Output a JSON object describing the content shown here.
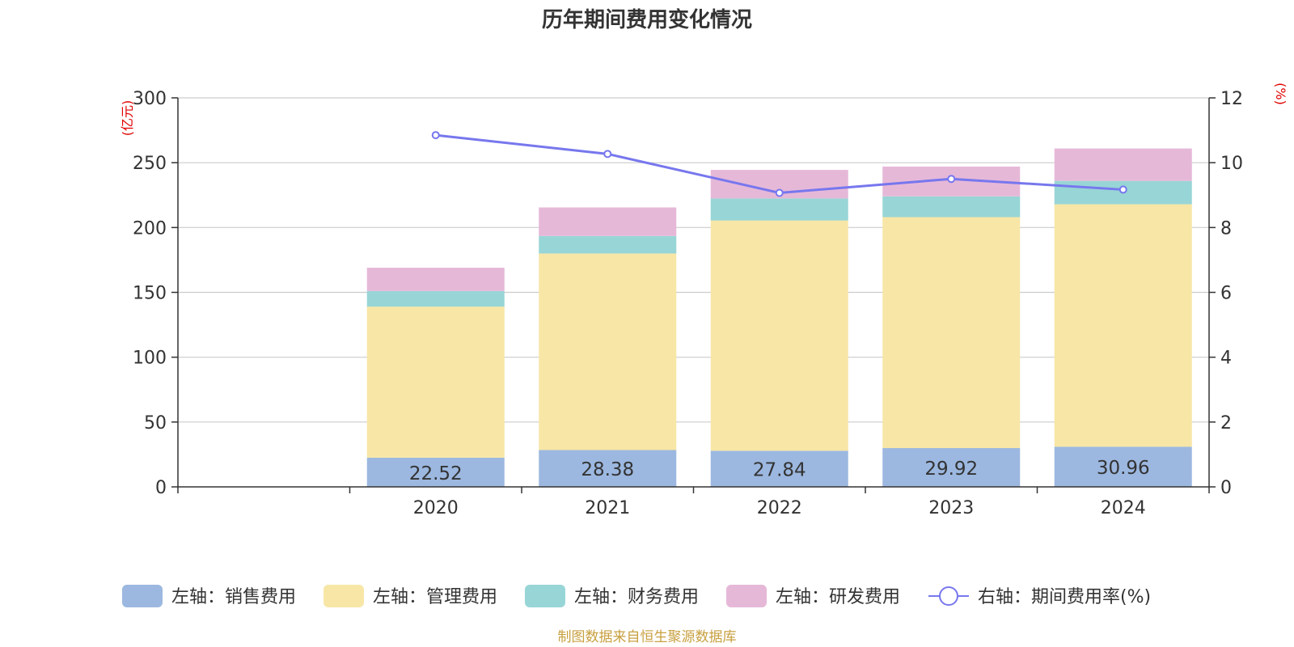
{
  "chart_data": {
    "type": "bar",
    "stacked": true,
    "title": "历年期间费用变化情况",
    "categories": [
      "",
      "2020",
      "2021",
      "2022",
      "2023",
      "2024"
    ],
    "left_axis": {
      "unit": "(亿元)",
      "ylim": [
        0,
        300
      ],
      "ticks": [
        0,
        50,
        100,
        150,
        200,
        250,
        300
      ]
    },
    "right_axis": {
      "unit": "(%)",
      "ylim": [
        0,
        12
      ],
      "ticks": [
        0,
        2,
        4,
        6,
        8,
        10,
        12
      ]
    },
    "series": [
      {
        "name": "左轴：销售费用",
        "axis": "left",
        "type": "bar",
        "color": "#9cb8e0",
        "values": [
          null,
          22.52,
          28.38,
          27.84,
          29.92,
          30.96
        ],
        "show_labels": true
      },
      {
        "name": "左轴：管理费用",
        "axis": "left",
        "type": "bar",
        "color": "#f7e6a6",
        "values": [
          null,
          116.5,
          151.6,
          177.6,
          178.1,
          187.0
        ]
      },
      {
        "name": "左轴：财务费用",
        "axis": "left",
        "type": "bar",
        "color": "#98d5d6",
        "values": [
          null,
          12.0,
          13.5,
          17.0,
          16.0,
          18.0
        ]
      },
      {
        "name": "左轴：研发费用",
        "axis": "left",
        "type": "bar",
        "color": "#e6b8d8",
        "values": [
          null,
          18.0,
          22.0,
          22.0,
          23.0,
          25.0
        ]
      },
      {
        "name": "右轴：期间费用率(%)",
        "axis": "right",
        "type": "line",
        "color": "#7777ee",
        "values": [
          null,
          10.85,
          10.27,
          9.07,
          9.5,
          9.17
        ]
      }
    ],
    "legend_position": "bottom",
    "grid": true
  },
  "footer": {
    "source": "制图数据来自恒生聚源数据库",
    "color": "#c8a040"
  }
}
